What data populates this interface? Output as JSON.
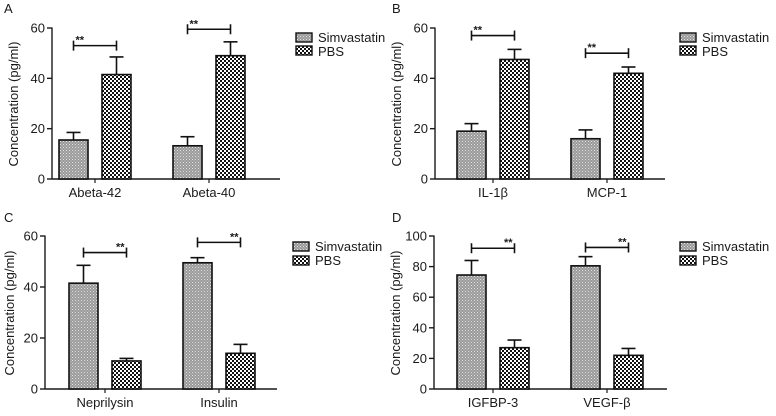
{
  "figure": {
    "legend_items": [
      "Simvastatin",
      "PBS"
    ],
    "colors": {
      "axis": "#1a1a1a",
      "bar_outline": "#111111",
      "simvastatin_fill": "#9a9a9a",
      "simvastatin_dots": "#e6e6e6",
      "pbs_fill": "#ffffff",
      "pbs_dots": "#111111"
    }
  },
  "chart_data": [
    {
      "panel": "A",
      "type": "bar",
      "title": "",
      "xlabel": "",
      "ylabel": "Concentration (pg/ml)",
      "ylim": [
        0,
        60
      ],
      "yticks": [
        0,
        20,
        40,
        60
      ],
      "categories": [
        "Abeta-42",
        "Abeta-40"
      ],
      "series": [
        {
          "name": "Simvastatin",
          "values": [
            15.5,
            13.2
          ],
          "error_upper": [
            18.5,
            16.8
          ]
        },
        {
          "name": "PBS",
          "values": [
            41.5,
            49.0
          ],
          "error_upper": [
            48.5,
            54.5
          ]
        }
      ],
      "significance": [
        {
          "category": "Abeta-42",
          "label": "**",
          "y": 53
        },
        {
          "category": "Abeta-40",
          "label": "**",
          "y": 59.5
        }
      ],
      "star_side": "left",
      "legend": "top-right",
      "grid": false
    },
    {
      "panel": "B",
      "type": "bar",
      "title": "",
      "xlabel": "",
      "ylabel": "Concentration (pg/ml)",
      "ylim": [
        0,
        60
      ],
      "yticks": [
        0,
        20,
        40,
        60
      ],
      "categories": [
        "IL-1β",
        "MCP-1"
      ],
      "series": [
        {
          "name": "Simvastatin",
          "values": [
            19.0,
            16.0
          ],
          "error_upper": [
            22.0,
            19.5
          ]
        },
        {
          "name": "PBS",
          "values": [
            47.5,
            42.0
          ],
          "error_upper": [
            51.5,
            44.5
          ]
        }
      ],
      "significance": [
        {
          "category": "IL-1β",
          "label": "**",
          "y": 57
        },
        {
          "category": "MCP-1",
          "label": "**",
          "y": 50
        }
      ],
      "star_side": "left",
      "legend": "top-right",
      "grid": false
    },
    {
      "panel": "C",
      "type": "bar",
      "title": "",
      "xlabel": "",
      "ylabel": "Concentration (pg/ml)",
      "ylim": [
        0,
        60
      ],
      "yticks": [
        0,
        20,
        40,
        60
      ],
      "categories": [
        "Neprilysin",
        "Insulin"
      ],
      "series": [
        {
          "name": "Simvastatin",
          "values": [
            41.5,
            49.5
          ],
          "error_upper": [
            48.5,
            51.5
          ]
        },
        {
          "name": "PBS",
          "values": [
            11.0,
            14.0
          ],
          "error_upper": [
            12.0,
            17.5
          ]
        }
      ],
      "significance": [
        {
          "category": "Neprilysin",
          "label": "**",
          "y": 53.5
        },
        {
          "category": "Insulin",
          "label": "**",
          "y": 57.5
        }
      ],
      "star_side": "right",
      "legend": "top-right",
      "grid": false
    },
    {
      "panel": "D",
      "type": "bar",
      "title": "",
      "xlabel": "",
      "ylabel": "Concentration (pg/ml)",
      "ylim": [
        0,
        100
      ],
      "yticks": [
        0,
        20,
        40,
        60,
        80,
        100
      ],
      "categories": [
        "IGFBP-3",
        "VEGF-β"
      ],
      "series": [
        {
          "name": "Simvastatin",
          "values": [
            74.5,
            80.5
          ],
          "error_upper": [
            84.0,
            86.5
          ]
        },
        {
          "name": "PBS",
          "values": [
            27.0,
            22.0
          ],
          "error_upper": [
            32.0,
            26.5
          ]
        }
      ],
      "significance": [
        {
          "category": "IGFBP-3",
          "label": "**",
          "y": 92
        },
        {
          "category": "VEGF-β",
          "label": "**",
          "y": 92.5
        }
      ],
      "star_side": "right",
      "legend": "top-right",
      "grid": false
    }
  ]
}
